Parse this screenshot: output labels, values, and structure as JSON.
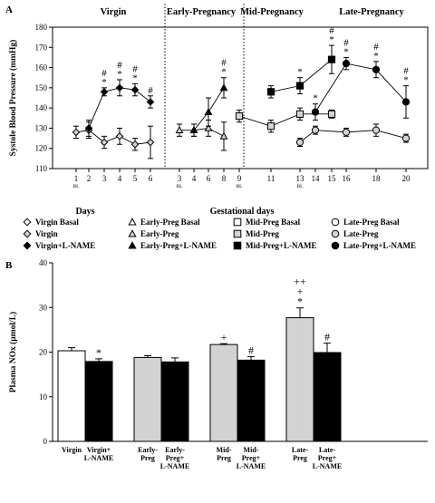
{
  "chart_data": [
    {
      "panel": "A",
      "type": "line",
      "ylabel": "Systole Blood Pressure (mmHg)",
      "ylim": [
        110,
        180
      ],
      "yticks": [
        110,
        120,
        130,
        140,
        150,
        160,
        170,
        180
      ],
      "sections": [
        {
          "title": "Virgin",
          "x_axis_label": "Days",
          "x_ticks": [
            {
              "label": "1",
              "sub": "BL"
            },
            {
              "label": "2",
              "sub": ""
            },
            {
              "label": "3",
              "sub": ""
            },
            {
              "label": "4",
              "sub": ""
            },
            {
              "label": "5",
              "sub": ""
            },
            {
              "label": "6",
              "sub": ""
            }
          ],
          "series": [
            {
              "name": "Virgin",
              "points": [
                {
                  "x": "1",
                  "y": 128,
                  "err": 3
                },
                {
                  "x": "2",
                  "y": 129,
                  "err": 4
                },
                {
                  "x": "3",
                  "y": 123,
                  "err": 3
                },
                {
                  "x": "4",
                  "y": 126,
                  "err": 4
                },
                {
                  "x": "5",
                  "y": 122,
                  "err": 3
                },
                {
                  "x": "6",
                  "y": 123,
                  "err": 8
                }
              ]
            },
            {
              "name": "Virgin+L-NAME",
              "points": [
                {
                  "x": "2",
                  "y": 130,
                  "err": 4
                },
                {
                  "x": "3",
                  "y": 148,
                  "err": 2,
                  "sig": [
                    "#",
                    "*"
                  ]
                },
                {
                  "x": "4",
                  "y": 150,
                  "err": 4,
                  "sig": [
                    "#",
                    "*"
                  ]
                },
                {
                  "x": "5",
                  "y": 149,
                  "err": 3,
                  "sig": [
                    "#",
                    "*"
                  ]
                },
                {
                  "x": "6",
                  "y": 143,
                  "err": 3,
                  "sig": [
                    "#"
                  ]
                }
              ]
            }
          ]
        },
        {
          "title": "Early-Pregnancy",
          "x_axis_label": "",
          "x_ticks": [
            {
              "label": "3",
              "sub": "BL"
            },
            {
              "label": "4",
              "sub": ""
            },
            {
              "label": "6",
              "sub": ""
            },
            {
              "label": "8",
              "sub": ""
            }
          ],
          "series": [
            {
              "name": "Early-Preg",
              "points": [
                {
                  "x": "3",
                  "y": 129,
                  "err": 3
                },
                {
                  "x": "4",
                  "y": 129,
                  "err": 3
                },
                {
                  "x": "6",
                  "y": 130,
                  "err": 4
                },
                {
                  "x": "8",
                  "y": 126,
                  "err": 7
                }
              ]
            },
            {
              "name": "Early-Preg+L-NAME",
              "points": [
                {
                  "x": "4",
                  "y": 129,
                  "err": 3
                },
                {
                  "x": "6",
                  "y": 138,
                  "err": 7
                },
                {
                  "x": "8",
                  "y": 150,
                  "err": 5,
                  "sig": [
                    "#",
                    "*"
                  ]
                }
              ]
            }
          ]
        },
        {
          "title": "Mid-Pregnancy",
          "x_axis_label": "",
          "x_ticks": [
            {
              "label": "9",
              "sub": "BL"
            },
            {
              "label": "11",
              "sub": ""
            },
            {
              "label": "13",
              "sub": "BL"
            },
            {
              "label": "15",
              "sub": ""
            }
          ],
          "series": [
            {
              "name": "Mid-Preg",
              "points": [
                {
                  "x": "9",
                  "y": 136,
                  "err": 3
                },
                {
                  "x": "11",
                  "y": 131,
                  "err": 3
                },
                {
                  "x": "13",
                  "y": 137,
                  "err": 3
                },
                {
                  "x": "15",
                  "y": 137,
                  "err": 2
                }
              ]
            },
            {
              "name": "Mid-Preg+L-NAME",
              "points": [
                {
                  "x": "11",
                  "y": 148,
                  "err": 3
                },
                {
                  "x": "13",
                  "y": 151,
                  "err": 4,
                  "sig": [
                    "*"
                  ]
                },
                {
                  "x": "15",
                  "y": 164,
                  "err": 7,
                  "sig": [
                    "#",
                    "*"
                  ]
                }
              ]
            }
          ]
        },
        {
          "title": "Late-Pregnancy",
          "x_axis_label": "",
          "x_ticks": [
            {
              "label": "14",
              "sub": ""
            },
            {
              "label": "16",
              "sub": ""
            },
            {
              "label": "18",
              "sub": ""
            },
            {
              "label": "20",
              "sub": ""
            }
          ],
          "series": [
            {
              "name": "Late-Preg",
              "points": [
                {
                  "x": "13",
                  "y": 123,
                  "err": 2
                },
                {
                  "x": "14",
                  "y": 129,
                  "err": 2
                },
                {
                  "x": "16",
                  "y": 128,
                  "err": 2
                },
                {
                  "x": "18",
                  "y": 129,
                  "err": 3
                },
                {
                  "x": "20",
                  "y": 125,
                  "err": 2
                }
              ]
            },
            {
              "name": "Late-Preg+L-NAME",
              "points": [
                {
                  "x": "14",
                  "y": 138,
                  "err": 4,
                  "sig": [
                    "*"
                  ]
                },
                {
                  "x": "16",
                  "y": 162,
                  "err": 3,
                  "sig": [
                    "#",
                    "*"
                  ]
                },
                {
                  "x": "18",
                  "y": 159,
                  "err": 4,
                  "sig": [
                    "#",
                    "*"
                  ]
                },
                {
                  "x": "20",
                  "y": 143,
                  "err": 8,
                  "sig": [
                    "#",
                    "*"
                  ]
                }
              ]
            }
          ]
        }
      ],
      "shared_x_label": "Gestational  days",
      "legend": {
        "placement": "bottom",
        "entries": [
          {
            "name": "Virgin Basal",
            "marker": "diamond",
            "fill": "#ffffff"
          },
          {
            "name": "Early-Preg Basal",
            "marker": "triangle",
            "fill": "#ffffff"
          },
          {
            "name": "Mid-Preg Basal",
            "marker": "square",
            "fill": "#ffffff"
          },
          {
            "name": "Late-Preg Basal",
            "marker": "circle",
            "fill": "#ffffff"
          },
          {
            "name": "Virgin",
            "marker": "diamond",
            "fill": "#d3d3d3"
          },
          {
            "name": "Early-Preg",
            "marker": "triangle",
            "fill": "#d3d3d3"
          },
          {
            "name": "Mid-Preg",
            "marker": "square",
            "fill": "#d3d3d3"
          },
          {
            "name": "Late-Preg",
            "marker": "circle",
            "fill": "#d3d3d3"
          },
          {
            "name": "Virgin+L-NAME",
            "marker": "diamond",
            "fill": "#000000"
          },
          {
            "name": "Early-Preg+L-NAME",
            "marker": "triangle",
            "fill": "#000000"
          },
          {
            "name": "Mid-Preg+L-NAME",
            "marker": "square",
            "fill": "#000000"
          },
          {
            "name": "Late-Preg+L-NAME",
            "marker": "circle",
            "fill": "#000000"
          }
        ]
      }
    },
    {
      "panel": "B",
      "type": "bar",
      "ylabel": "Plasma NOx (µmol/L)",
      "ylim": [
        0,
        40
      ],
      "yticks": [
        0,
        10,
        20,
        30,
        40
      ],
      "bars": [
        {
          "label": [
            "Virgin"
          ],
          "value": 20.3,
          "err": 0.7,
          "fill": "#ffffff",
          "sig": []
        },
        {
          "label": [
            "Virgin+",
            "L-NAME"
          ],
          "value": 17.9,
          "err": 0.6,
          "fill": "#000000",
          "sig": [
            "*"
          ]
        },
        {
          "label": [
            "Early-",
            "Preg"
          ],
          "value": 18.8,
          "err": 0.4,
          "fill": "#d3d3d3",
          "sig": []
        },
        {
          "label": [
            "Early-",
            "Preg+",
            "L-NAME"
          ],
          "value": 17.8,
          "err": 0.9,
          "fill": "#000000",
          "sig": []
        },
        {
          "label": [
            "Mid-",
            "Preg"
          ],
          "value": 21.7,
          "err": 0.2,
          "fill": "#d3d3d3",
          "sig": [
            "+"
          ]
        },
        {
          "label": [
            "Mid-",
            "Preg+",
            "L-NAME"
          ],
          "value": 18.2,
          "err": 0.8,
          "fill": "#000000",
          "sig": [
            "#"
          ]
        },
        {
          "label": [
            "Late-",
            "Preg"
          ],
          "value": 27.7,
          "err": 2.2,
          "fill": "#d3d3d3",
          "sig": [
            "++",
            "+",
            "*"
          ]
        },
        {
          "label": [
            "Late-",
            "Preg+",
            "L-NAME"
          ],
          "value": 19.9,
          "err": 2.1,
          "fill": "#000000",
          "sig": [
            "#"
          ]
        }
      ]
    }
  ]
}
